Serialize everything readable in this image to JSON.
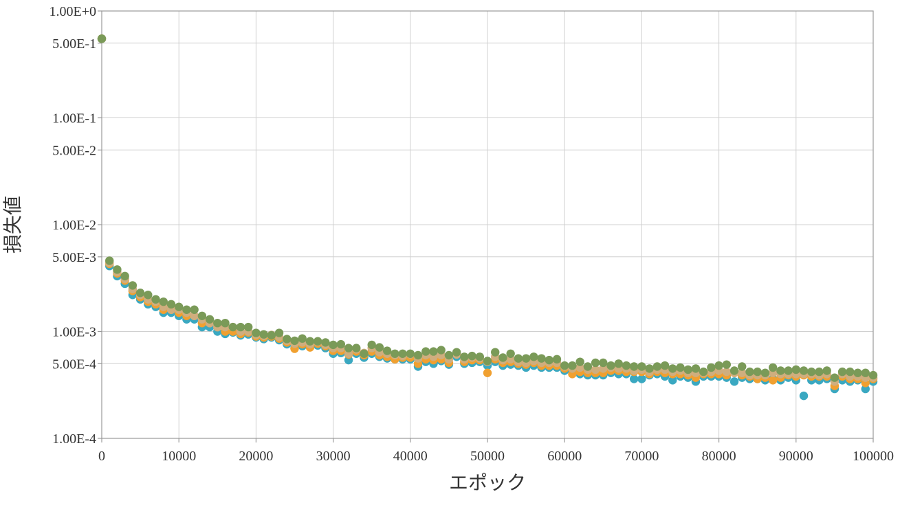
{
  "chart_data": {
    "type": "scatter",
    "title": "",
    "xlabel": "エポック",
    "ylabel": "損失値",
    "xlim": [
      0,
      100000
    ],
    "ylim": [
      0.0001,
      1
    ],
    "y_scale": "log",
    "grid": true,
    "x_ticks": [
      {
        "value": 0,
        "label": "0"
      },
      {
        "value": 10000,
        "label": "10000"
      },
      {
        "value": 20000,
        "label": "20000"
      },
      {
        "value": 30000,
        "label": "30000"
      },
      {
        "value": 40000,
        "label": "40000"
      },
      {
        "value": 50000,
        "label": "50000"
      },
      {
        "value": 60000,
        "label": "60000"
      },
      {
        "value": 70000,
        "label": "70000"
      },
      {
        "value": 80000,
        "label": "80000"
      },
      {
        "value": 90000,
        "label": "90000"
      },
      {
        "value": 100000,
        "label": "100000"
      }
    ],
    "y_ticks": [
      {
        "value": 1,
        "label": "1.00E+0"
      },
      {
        "value": 0.5,
        "label": "5.00E-1"
      },
      {
        "value": 0.1,
        "label": "1.00E-1"
      },
      {
        "value": 0.05,
        "label": "5.00E-2"
      },
      {
        "value": 0.01,
        "label": "1.00E-2"
      },
      {
        "value": 0.005,
        "label": "5.00E-3"
      },
      {
        "value": 0.001,
        "label": "1.00E-3"
      },
      {
        "value": 0.0005,
        "label": "5.00E-4"
      },
      {
        "value": 0.0001,
        "label": "1.00E-4"
      }
    ],
    "x": [
      0,
      1000,
      2000,
      3000,
      4000,
      5000,
      6000,
      7000,
      8000,
      9000,
      10000,
      11000,
      12000,
      13000,
      14000,
      15000,
      16000,
      17000,
      18000,
      19000,
      20000,
      21000,
      22000,
      23000,
      24000,
      25000,
      26000,
      27000,
      28000,
      29000,
      30000,
      31000,
      32000,
      33000,
      34000,
      35000,
      36000,
      37000,
      38000,
      39000,
      40000,
      41000,
      42000,
      43000,
      44000,
      45000,
      46000,
      47000,
      48000,
      49000,
      50000,
      51000,
      52000,
      53000,
      54000,
      55000,
      56000,
      57000,
      58000,
      59000,
      60000,
      61000,
      62000,
      63000,
      64000,
      65000,
      66000,
      67000,
      68000,
      69000,
      70000,
      71000,
      72000,
      73000,
      74000,
      75000,
      76000,
      77000,
      78000,
      79000,
      80000,
      81000,
      82000,
      83000,
      84000,
      85000,
      86000,
      87000,
      88000,
      89000,
      90000,
      91000,
      92000,
      93000,
      94000,
      95000,
      96000,
      97000,
      98000,
      99000,
      100000
    ],
    "series": [
      {
        "color": "#3aa8c1",
        "values": [
          0.55,
          0.0041,
          0.0033,
          0.0028,
          0.0022,
          0.002,
          0.0018,
          0.0017,
          0.0015,
          0.0015,
          0.0014,
          0.0013,
          0.0013,
          0.0011,
          0.0011,
          0.001,
          0.00095,
          0.00098,
          0.00092,
          0.00094,
          0.00088,
          0.00085,
          0.00088,
          0.00083,
          0.00076,
          0.0007,
          0.00073,
          0.00072,
          0.00074,
          0.0007,
          0.00062,
          0.00063,
          0.00054,
          0.00062,
          0.00057,
          0.00062,
          0.00058,
          0.00056,
          0.00055,
          0.00055,
          0.00055,
          0.00047,
          0.00052,
          0.0005,
          0.00053,
          0.00049,
          0.00058,
          0.0005,
          0.00051,
          0.00052,
          0.00048,
          0.00052,
          0.00048,
          0.00049,
          0.00048,
          0.00046,
          0.00048,
          0.00046,
          0.00046,
          0.00046,
          0.00043,
          0.00042,
          0.0004,
          0.00039,
          0.00039,
          0.00039,
          0.00041,
          0.0004,
          0.0004,
          0.00036,
          0.00036,
          0.00039,
          0.0004,
          0.00038,
          0.00035,
          0.00038,
          0.00037,
          0.00034,
          0.00038,
          0.00038,
          0.00038,
          0.00037,
          0.00034,
          0.00037,
          0.00036,
          0.00036,
          0.00035,
          0.00036,
          0.00035,
          0.00037,
          0.00035,
          0.00025,
          0.00035,
          0.00035,
          0.00036,
          0.00029,
          0.00035,
          0.00034,
          0.00035,
          0.00029,
          0.00034
        ]
      },
      {
        "color": "#f0a030",
        "values": [
          0.55,
          0.0043,
          0.0035,
          0.003,
          0.0024,
          0.0021,
          0.0019,
          0.0018,
          0.0016,
          0.0016,
          0.0015,
          0.0014,
          0.0014,
          0.0012,
          0.0012,
          0.0011,
          0.001,
          0.001,
          0.00095,
          0.00098,
          0.0009,
          0.00088,
          0.0009,
          0.00086,
          0.00079,
          0.00069,
          0.00076,
          0.00071,
          0.00077,
          0.00073,
          0.00066,
          0.00066,
          0.00061,
          0.00065,
          0.0006,
          0.00065,
          0.0006,
          0.00058,
          0.00055,
          0.00057,
          0.00057,
          0.0005,
          0.00055,
          0.00054,
          0.00055,
          0.00051,
          0.00061,
          0.00052,
          0.00054,
          0.00054,
          0.00041,
          0.00055,
          0.00051,
          0.00052,
          0.0005,
          0.00049,
          0.00051,
          0.00048,
          0.00048,
          0.00048,
          0.00045,
          0.0004,
          0.00042,
          0.00041,
          0.00041,
          0.00041,
          0.00043,
          0.00043,
          0.00042,
          0.00042,
          0.00042,
          0.0004,
          0.00042,
          0.00041,
          0.0004,
          0.0004,
          0.00039,
          0.00037,
          0.0004,
          0.0004,
          0.0004,
          0.00039,
          0.00041,
          0.00039,
          0.00038,
          0.00036,
          0.00037,
          0.00035,
          0.00037,
          0.00039,
          0.00038,
          0.00039,
          0.00038,
          0.00038,
          0.00038,
          0.00031,
          0.00038,
          0.00036,
          0.00036,
          0.00033,
          0.00036
        ]
      },
      {
        "color": "#cfae7e",
        "values": [
          0.55,
          0.0044,
          0.0036,
          0.0031,
          0.0025,
          0.0022,
          0.002,
          0.0019,
          0.0017,
          0.0016,
          0.0016,
          0.0015,
          0.0014,
          0.0013,
          0.0012,
          0.0011,
          0.0011,
          0.0011,
          0.001,
          0.001,
          0.00093,
          0.00091,
          0.00093,
          0.00089,
          0.00082,
          0.00077,
          0.00079,
          0.00076,
          0.0008,
          0.00075,
          0.0007,
          0.0007,
          0.00062,
          0.00068,
          0.00063,
          0.0007,
          0.00064,
          0.00062,
          0.0006,
          0.00059,
          0.00061,
          0.00056,
          0.0006,
          0.00058,
          0.0006,
          0.00055,
          0.00061,
          0.00055,
          0.00057,
          0.00056,
          0.00052,
          0.00058,
          0.00054,
          0.00055,
          0.00052,
          0.00051,
          0.00053,
          0.00051,
          0.00051,
          0.00051,
          0.00047,
          0.00045,
          0.00046,
          0.00044,
          0.00044,
          0.00045,
          0.00046,
          0.00045,
          0.00045,
          0.00043,
          0.00044,
          0.00042,
          0.00044,
          0.00044,
          0.00042,
          0.00043,
          0.00041,
          0.00041,
          0.00041,
          0.00042,
          0.00043,
          0.00042,
          0.00041,
          0.00041,
          0.00039,
          0.00039,
          0.00039,
          0.00041,
          0.0004,
          0.0004,
          0.0004,
          0.0004,
          0.0004,
          0.00039,
          0.0004,
          0.00034,
          0.0004,
          0.00038,
          0.00038,
          0.00037,
          0.00037
        ]
      },
      {
        "color": "#7a9a58",
        "values": [
          0.55,
          0.0046,
          0.0038,
          0.0033,
          0.0027,
          0.0023,
          0.0022,
          0.002,
          0.0019,
          0.0018,
          0.0017,
          0.0016,
          0.0016,
          0.0014,
          0.0013,
          0.0012,
          0.0012,
          0.0011,
          0.0011,
          0.0011,
          0.00097,
          0.00094,
          0.00092,
          0.00097,
          0.00085,
          0.00082,
          0.00086,
          0.00081,
          0.00081,
          0.00079,
          0.00075,
          0.00076,
          0.0007,
          0.0007,
          0.00062,
          0.00075,
          0.00071,
          0.00066,
          0.00062,
          0.00062,
          0.00062,
          0.0006,
          0.00065,
          0.00065,
          0.00067,
          0.0006,
          0.00064,
          0.00058,
          0.00059,
          0.00058,
          0.00053,
          0.00064,
          0.00057,
          0.00062,
          0.00056,
          0.00056,
          0.00058,
          0.00056,
          0.00054,
          0.00055,
          0.00048,
          0.00048,
          0.00052,
          0.00047,
          0.00051,
          0.00051,
          0.00048,
          0.0005,
          0.00048,
          0.00047,
          0.00047,
          0.00045,
          0.00047,
          0.00048,
          0.00045,
          0.00046,
          0.00044,
          0.00045,
          0.00042,
          0.00046,
          0.00048,
          0.00049,
          0.00043,
          0.00047,
          0.00042,
          0.00042,
          0.00041,
          0.00046,
          0.00043,
          0.00043,
          0.00044,
          0.00043,
          0.00042,
          0.00042,
          0.00043,
          0.00037,
          0.00042,
          0.00042,
          0.00041,
          0.00041,
          0.00039
        ]
      }
    ]
  }
}
